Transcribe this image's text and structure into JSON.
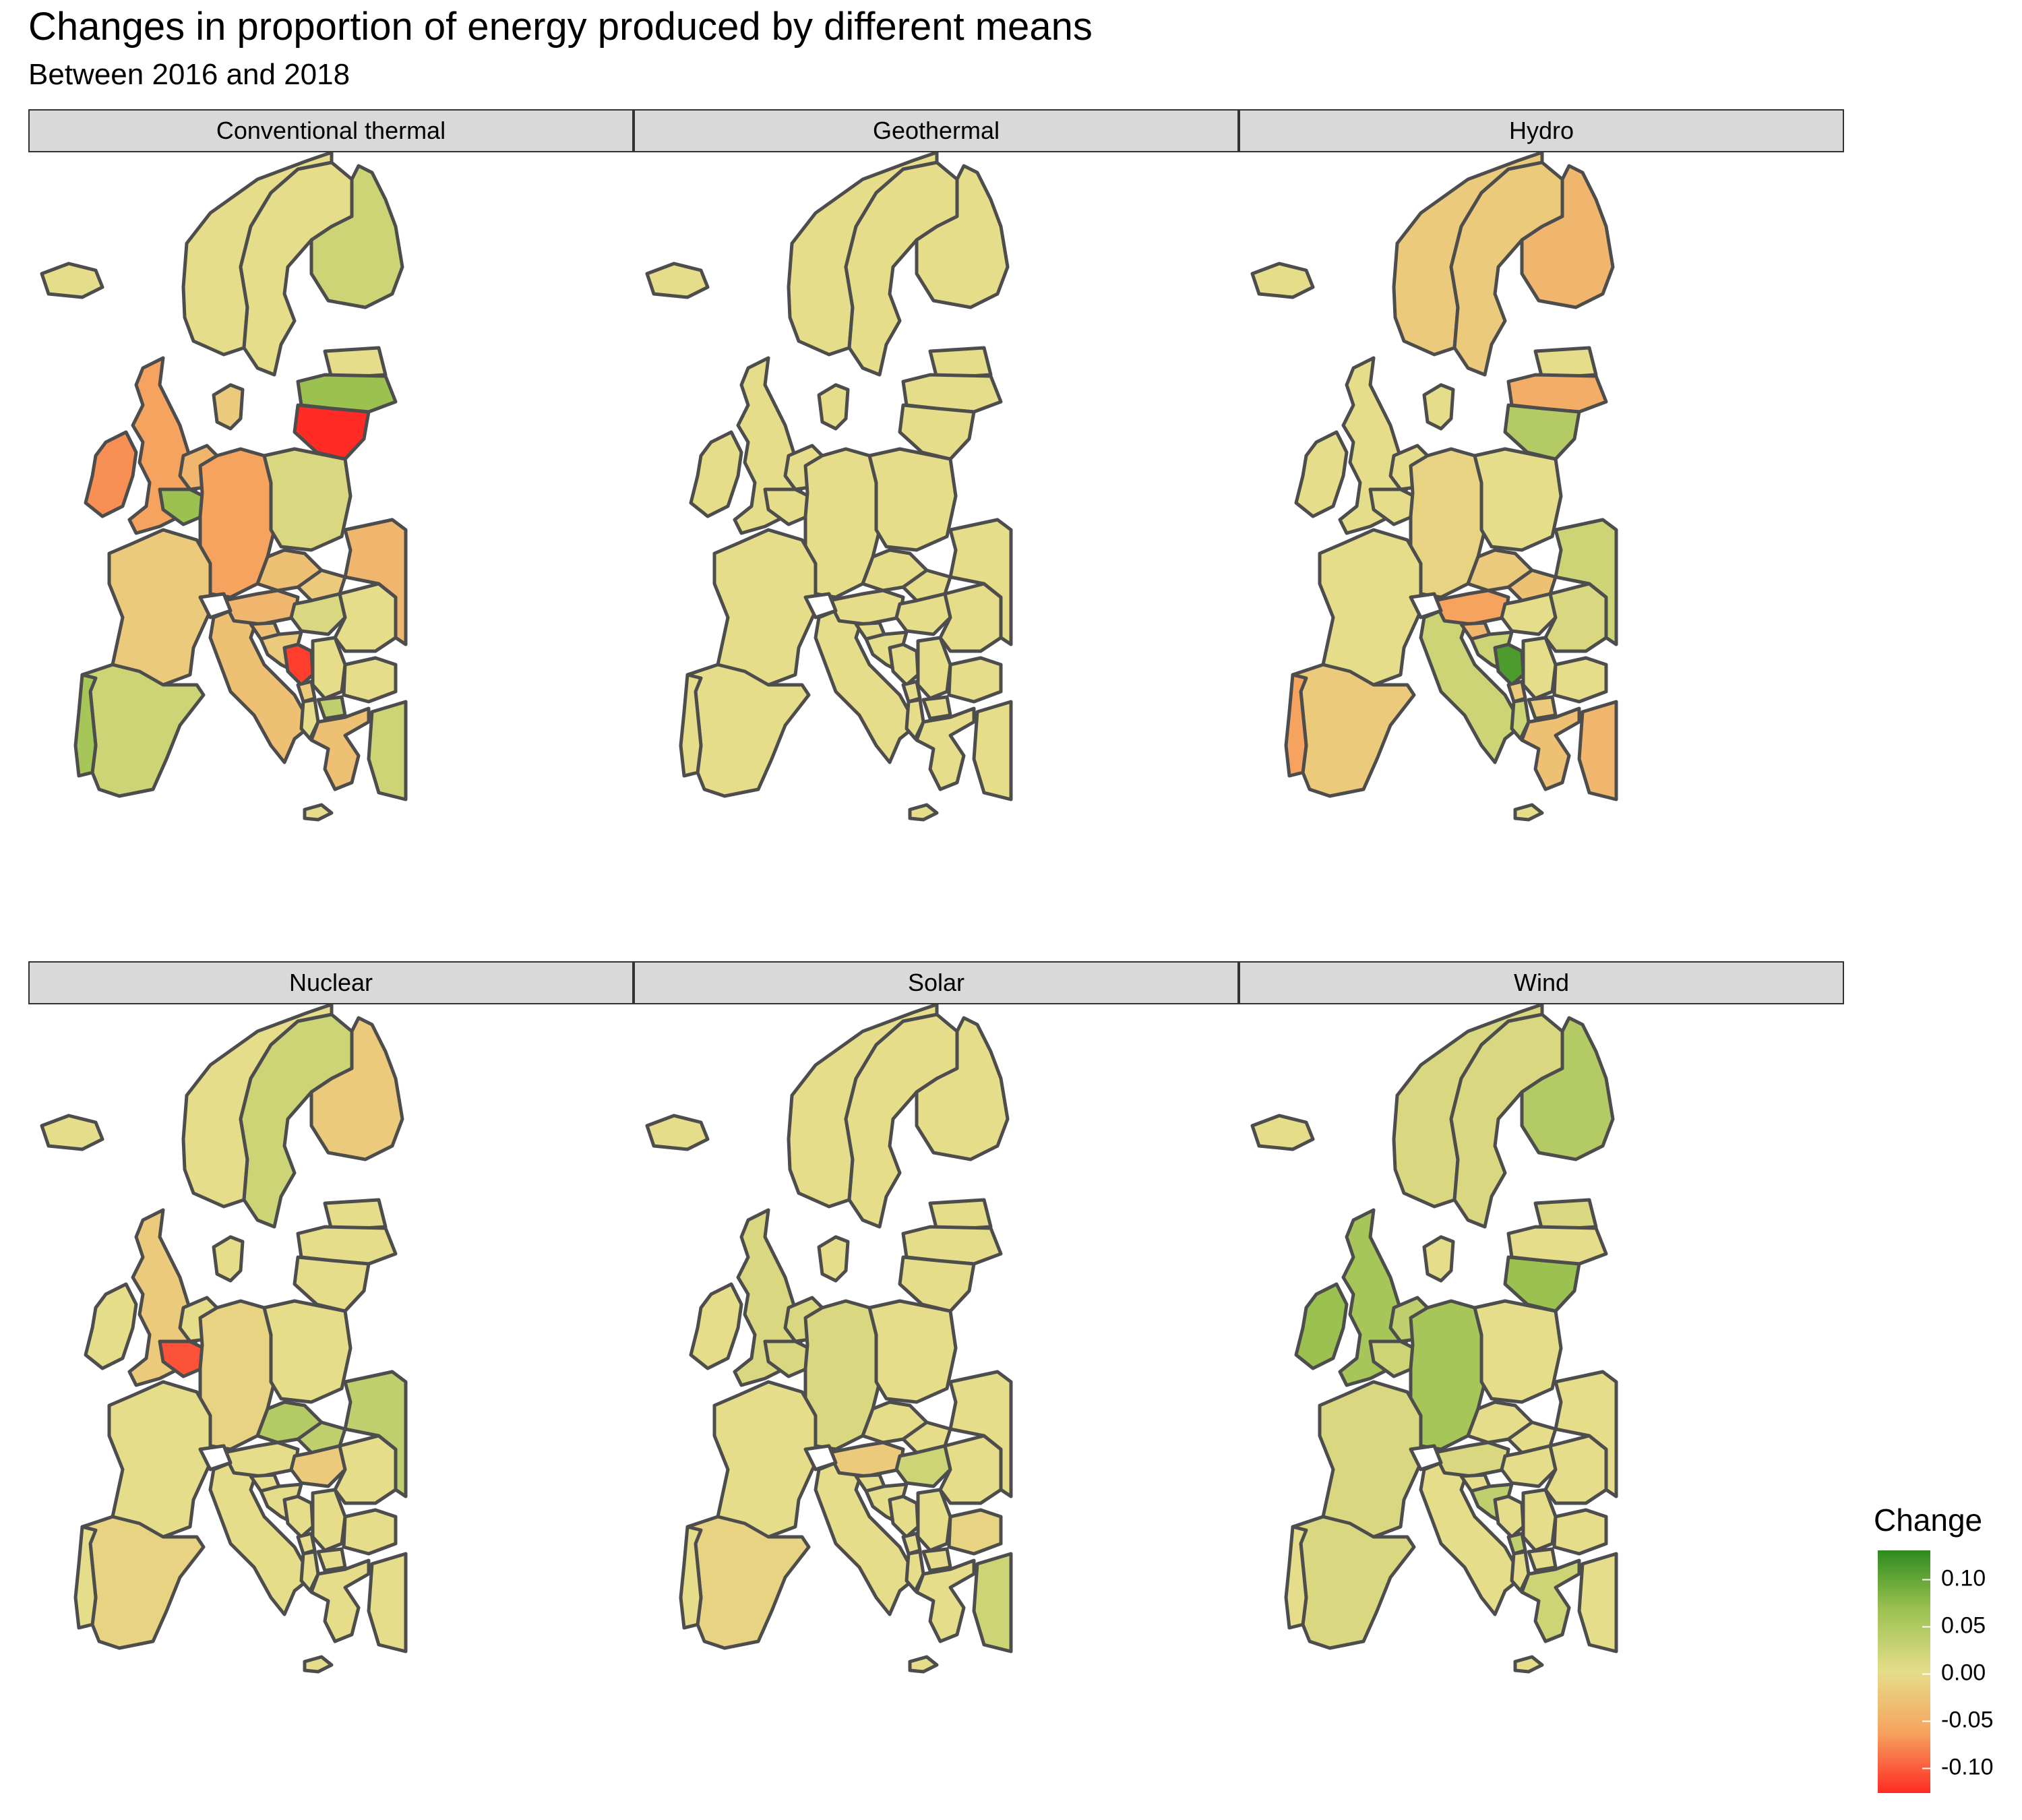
{
  "title": "Changes in proportion of energy produced by different means",
  "subtitle": "Between 2016 and 2018",
  "legend": {
    "title": "Change",
    "ticks": [
      "0.10",
      "0.05",
      "0.00",
      "-0.05",
      "-0.10"
    ],
    "range": [
      -0.12,
      0.13
    ],
    "colors": {
      "high": "#2e8b1f",
      "mid_high": "#9bc151",
      "zero": "#e5dd89",
      "mid_low": "#f6a35f",
      "low": "#ff2b24"
    }
  },
  "panels": [
    {
      "label": "Conventional thermal",
      "values": {
        "IE": -0.07,
        "GB": -0.06,
        "IS": 0.0,
        "NO": 0.0,
        "SE": 0.0,
        "FI": 0.02,
        "EE": 0.0,
        "LV": 0.06,
        "LT": -0.12,
        "PL": 0.01,
        "DE": -0.06,
        "NL": -0.04,
        "BE": 0.06,
        "FR": -0.02,
        "ES": 0.02,
        "PT": 0.05,
        "IT": -0.03,
        "CZ": -0.03,
        "AT": -0.04,
        "SK": -0.02,
        "HU": 0.01,
        "SI": -0.03,
        "HR": -0.02,
        "BA": -0.11,
        "RS": 0.0,
        "RO": 0.0,
        "BG": 0.0,
        "GR": -0.03,
        "MK": 0.03,
        "AL": 0.0,
        "ME": -0.02,
        "DK": -0.02,
        "UA": -0.04,
        "TR": 0.02,
        "CY": 0.0
      }
    },
    {
      "label": "Geothermal",
      "values": {
        "IE": 0.0,
        "GB": 0.0,
        "IS": 0.0,
        "NO": 0.0,
        "SE": 0.0,
        "FI": 0.0,
        "EE": 0.0,
        "LV": 0.0,
        "LT": 0.0,
        "PL": 0.0,
        "DE": 0.0,
        "NL": 0.0,
        "BE": 0.0,
        "FR": 0.0,
        "ES": 0.0,
        "PT": 0.0,
        "IT": 0.0,
        "CZ": 0.0,
        "AT": 0.0,
        "SK": 0.0,
        "HU": 0.0,
        "SI": 0.0,
        "HR": 0.0,
        "BA": 0.0,
        "RS": 0.0,
        "RO": 0.0,
        "BG": 0.0,
        "GR": 0.0,
        "MK": 0.0,
        "AL": 0.0,
        "ME": 0.0,
        "DK": 0.0,
        "UA": 0.0,
        "TR": 0.0,
        "CY": 0.0
      }
    },
    {
      "label": "Hydro",
      "values": {
        "IE": 0.0,
        "GB": 0.0,
        "IS": 0.0,
        "NO": -0.02,
        "SE": -0.02,
        "FI": -0.04,
        "EE": 0.0,
        "LV": -0.05,
        "LT": 0.04,
        "PL": 0.0,
        "DE": -0.01,
        "NL": 0.0,
        "BE": 0.0,
        "FR": 0.0,
        "ES": -0.02,
        "PT": -0.06,
        "IT": 0.02,
        "CZ": -0.02,
        "AT": -0.06,
        "SK": -0.03,
        "HU": 0.0,
        "SI": -0.04,
        "HR": 0.02,
        "BA": 0.11,
        "RS": 0.0,
        "RO": 0.01,
        "BG": 0.0,
        "GR": -0.03,
        "MK": -0.02,
        "AL": 0.02,
        "ME": -0.02,
        "DK": 0.0,
        "UA": 0.02,
        "TR": -0.04,
        "CY": 0.0
      }
    },
    {
      "label": "Nuclear",
      "values": {
        "IE": 0.0,
        "GB": -0.02,
        "IS": 0.0,
        "NO": 0.0,
        "SE": 0.02,
        "FI": -0.02,
        "EE": 0.0,
        "LV": 0.0,
        "LT": 0.0,
        "PL": 0.0,
        "DE": -0.01,
        "NL": 0.0,
        "BE": -0.1,
        "FR": 0.0,
        "ES": -0.01,
        "PT": 0.0,
        "IT": 0.0,
        "CZ": 0.04,
        "AT": 0.0,
        "SK": 0.03,
        "HU": -0.02,
        "SI": 0.0,
        "HR": 0.0,
        "BA": 0.0,
        "RS": 0.0,
        "RO": 0.0,
        "BG": 0.0,
        "GR": 0.0,
        "MK": 0.0,
        "AL": 0.0,
        "ME": 0.0,
        "DK": 0.0,
        "UA": 0.03,
        "TR": 0.0,
        "CY": 0.0
      }
    },
    {
      "label": "Solar",
      "values": {
        "IE": 0.0,
        "GB": 0.01,
        "IS": 0.0,
        "NO": 0.0,
        "SE": 0.0,
        "FI": 0.0,
        "EE": 0.0,
        "LV": 0.0,
        "LT": 0.0,
        "PL": 0.0,
        "DE": 0.01,
        "NL": 0.01,
        "BE": 0.01,
        "FR": 0.0,
        "ES": -0.01,
        "PT": 0.0,
        "IT": 0.0,
        "CZ": 0.0,
        "AT": -0.02,
        "SK": 0.0,
        "HU": 0.02,
        "SI": 0.0,
        "HR": 0.0,
        "BA": 0.0,
        "RS": 0.0,
        "RO": 0.0,
        "BG": -0.01,
        "GR": 0.0,
        "MK": 0.0,
        "AL": 0.0,
        "ME": 0.0,
        "DK": 0.0,
        "UA": 0.0,
        "TR": 0.02,
        "CY": 0.0
      }
    },
    {
      "label": "Wind",
      "values": {
        "IE": 0.06,
        "GB": 0.05,
        "IS": 0.0,
        "NO": 0.01,
        "SE": 0.01,
        "FI": 0.04,
        "EE": 0.01,
        "LV": 0.0,
        "LT": 0.06,
        "PL": 0.0,
        "DE": 0.05,
        "NL": 0.03,
        "BE": 0.02,
        "FR": 0.01,
        "ES": 0.01,
        "PT": 0.0,
        "IT": 0.0,
        "CZ": 0.0,
        "AT": 0.01,
        "SK": 0.0,
        "HU": 0.0,
        "SI": 0.0,
        "HR": 0.03,
        "BA": 0.0,
        "RS": 0.0,
        "RO": 0.0,
        "BG": 0.0,
        "GR": 0.02,
        "MK": 0.0,
        "AL": 0.0,
        "ME": 0.03,
        "DK": 0.0,
        "UA": 0.0,
        "TR": 0.0,
        "CY": 0.0
      }
    }
  ]
}
